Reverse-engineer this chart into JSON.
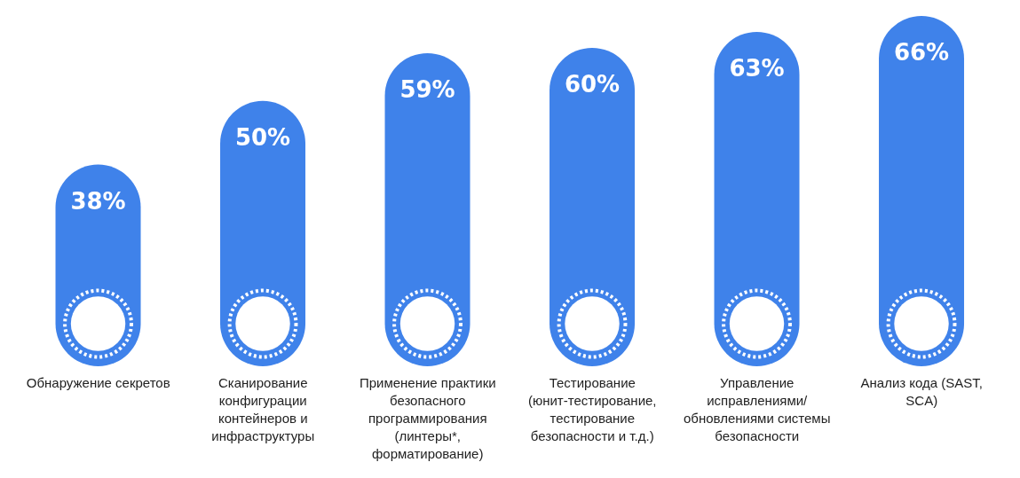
{
  "chart_data": {
    "type": "bar",
    "categories": [
      "Обнаружение секретов",
      "Сканирование конфигурации контейнеров и инфраструктуры",
      "Применение практики безопасного программирования (линтеры*, форматирование)",
      "Тестирование (юнит-тестирование, тестирование безопасности и т.д.)",
      "Управление исправлениями/ обновлениями системы безопасности",
      "Анализ кода (SAST, SCA)"
    ],
    "values": [
      38,
      50,
      59,
      60,
      63,
      66
    ],
    "color": "#3f82ea",
    "data_labels": true,
    "value_labels": [
      "38%",
      "50%",
      "59%",
      "60%",
      "63%",
      "66%"
    ]
  }
}
